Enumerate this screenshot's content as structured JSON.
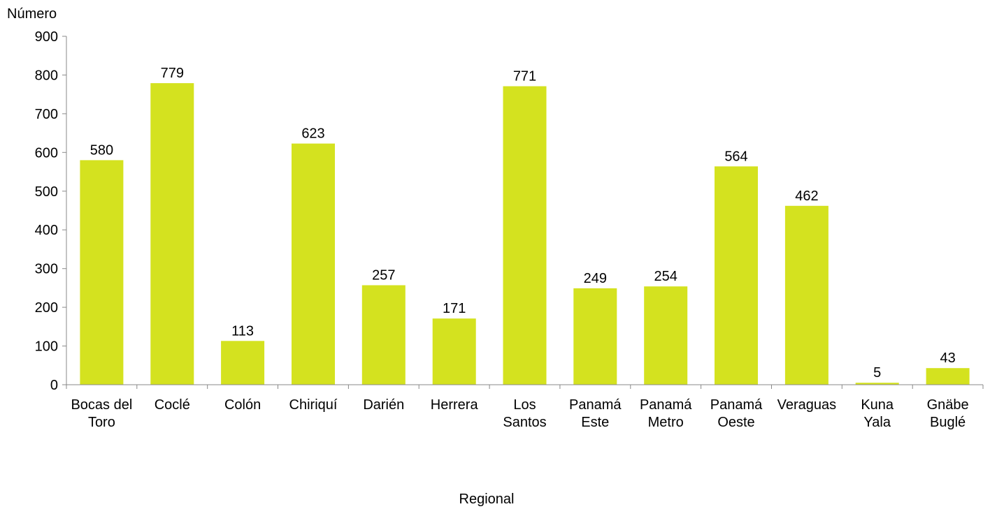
{
  "chart_data": {
    "type": "bar",
    "title": "",
    "ylabel": "Número",
    "xlabel": "Regional",
    "ylim": [
      0,
      900
    ],
    "yticks": [
      0,
      100,
      200,
      300,
      400,
      500,
      600,
      700,
      800,
      900
    ],
    "grid": false,
    "categories": [
      [
        "Bocas del",
        "Toro"
      ],
      [
        "Coclé"
      ],
      [
        "Colón"
      ],
      [
        "Chiriquí"
      ],
      [
        "Darién"
      ],
      [
        "Herrera"
      ],
      [
        "Los",
        "Santos"
      ],
      [
        "Panamá",
        "Este"
      ],
      [
        "Panamá",
        "Metro"
      ],
      [
        "Panamá",
        "Oeste"
      ],
      [
        "Veraguas"
      ],
      [
        "Kuna",
        "Yala"
      ],
      [
        "Gnäbe",
        "Buglé"
      ]
    ],
    "series": [
      {
        "values": [
          580,
          779,
          113,
          623,
          257,
          171,
          771,
          249,
          254,
          564,
          462,
          5,
          43
        ]
      }
    ],
    "colors": {
      "bar": "#d4e21f",
      "axis": "#888888",
      "text": "#000000"
    }
  }
}
